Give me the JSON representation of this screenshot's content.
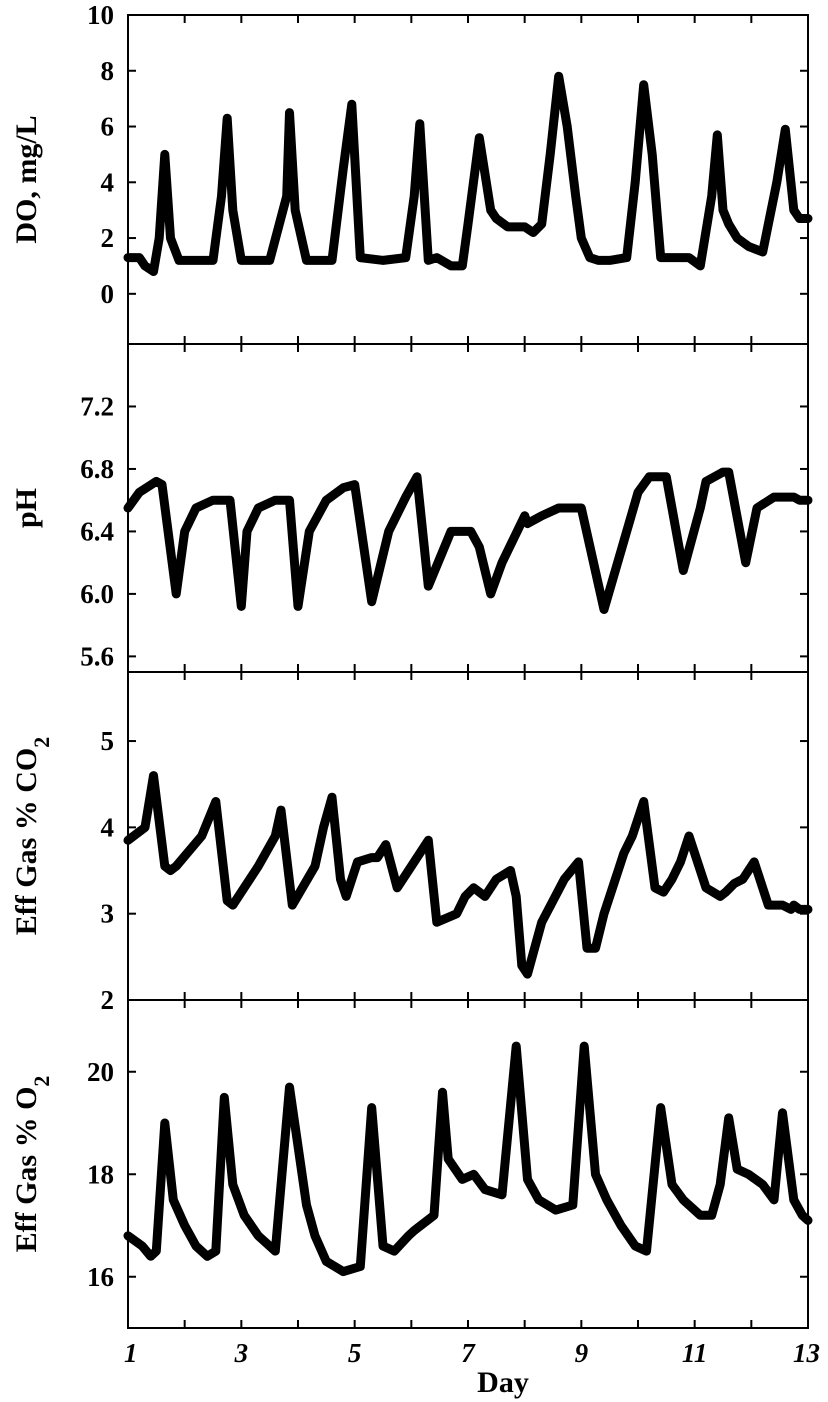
{
  "chart_data": [
    {
      "type": "line",
      "ylabel": "DO, mg/L",
      "ylim": [
        -1.8,
        10
      ],
      "yticks": [
        0,
        2,
        4,
        6,
        8,
        10
      ],
      "ytick_labels": [
        "0",
        "2",
        "4",
        "6",
        "8",
        "10"
      ],
      "xlim": [
        1,
        13
      ],
      "series": [
        {
          "x": [
            1.0,
            1.2,
            1.3,
            1.45,
            1.55,
            1.65,
            1.75,
            1.9,
            2.2,
            2.5,
            2.65,
            2.75,
            2.85,
            3.0,
            3.2,
            3.5,
            3.8,
            3.85,
            3.95,
            4.15,
            4.6,
            4.8,
            4.95,
            5.1,
            5.5,
            5.9,
            6.05,
            6.15,
            6.3,
            6.45,
            6.7,
            6.9,
            7.0,
            7.2,
            7.4,
            7.5,
            7.7,
            8.0,
            8.15,
            8.3,
            8.45,
            8.6,
            8.75,
            8.9,
            9.0,
            9.15,
            9.3,
            9.5,
            9.8,
            9.95,
            10.1,
            10.25,
            10.4,
            10.5,
            10.7,
            10.9,
            11.1,
            11.3,
            11.4,
            11.5,
            11.6,
            11.75,
            11.95,
            12.2,
            12.45,
            12.6,
            12.75,
            12.85,
            13.0
          ],
          "y": [
            1.3,
            1.3,
            1.0,
            0.8,
            2.0,
            5.0,
            2.0,
            1.2,
            1.2,
            1.2,
            3.5,
            6.3,
            3.0,
            1.2,
            1.2,
            1.2,
            3.5,
            6.5,
            3.0,
            1.2,
            1.2,
            4.5,
            6.8,
            1.3,
            1.2,
            1.3,
            3.5,
            6.1,
            1.2,
            1.3,
            1.0,
            1.0,
            2.5,
            5.6,
            3.0,
            2.7,
            2.4,
            2.4,
            2.2,
            2.5,
            5.0,
            7.8,
            6.0,
            3.5,
            2.0,
            1.3,
            1.2,
            1.2,
            1.3,
            4.0,
            7.5,
            5.0,
            1.3,
            1.3,
            1.3,
            1.3,
            1.0,
            3.5,
            5.7,
            3.0,
            2.5,
            2.0,
            1.7,
            1.5,
            4.0,
            5.9,
            3.0,
            2.7,
            2.7
          ]
        }
      ]
    },
    {
      "type": "line",
      "ylabel": "pH",
      "ylim": [
        5.5,
        7.6
      ],
      "yticks": [
        5.6,
        6.0,
        6.4,
        6.8,
        7.2
      ],
      "ytick_labels": [
        "5.6",
        "6.0",
        "6.4",
        "6.8",
        "7.2"
      ],
      "xlim": [
        1,
        13
      ],
      "series": [
        {
          "x": [
            1.0,
            1.2,
            1.5,
            1.6,
            1.85,
            2.0,
            2.2,
            2.5,
            2.8,
            3.0,
            3.1,
            3.3,
            3.6,
            3.85,
            4.0,
            4.2,
            4.5,
            4.8,
            5.0,
            5.3,
            5.6,
            5.9,
            6.1,
            6.3,
            6.7,
            6.8,
            7.05,
            7.2,
            7.4,
            7.6,
            8.0,
            8.05,
            8.3,
            8.6,
            8.8,
            9.0,
            9.4,
            9.8,
            10.0,
            10.2,
            10.5,
            10.8,
            11.1,
            11.2,
            11.5,
            11.6,
            11.9,
            12.1,
            12.4,
            12.6,
            12.75,
            12.85,
            13.0
          ],
          "y": [
            6.55,
            6.65,
            6.72,
            6.7,
            6.0,
            6.4,
            6.55,
            6.6,
            6.6,
            5.92,
            6.4,
            6.55,
            6.6,
            6.6,
            5.92,
            6.4,
            6.6,
            6.68,
            6.7,
            5.95,
            6.4,
            6.62,
            6.75,
            6.05,
            6.4,
            6.4,
            6.4,
            6.3,
            6.0,
            6.2,
            6.5,
            6.45,
            6.5,
            6.55,
            6.55,
            6.55,
            5.9,
            6.4,
            6.65,
            6.75,
            6.75,
            6.15,
            6.55,
            6.72,
            6.78,
            6.78,
            6.2,
            6.55,
            6.62,
            6.62,
            6.62,
            6.6,
            6.6
          ]
        }
      ]
    },
    {
      "type": "line",
      "ylabel": "Eff Gas % CO2",
      "ylim": [
        2,
        5.8
      ],
      "yticks": [
        2,
        3,
        4,
        5
      ],
      "ytick_labels": [
        "2",
        "3",
        "4",
        "5"
      ],
      "xlim": [
        1,
        13
      ],
      "series": [
        {
          "x": [
            1.0,
            1.3,
            1.45,
            1.65,
            1.75,
            1.85,
            2.3,
            2.55,
            2.75,
            2.85,
            3.3,
            3.6,
            3.7,
            3.9,
            4.3,
            4.45,
            4.6,
            4.75,
            4.85,
            5.05,
            5.3,
            5.4,
            5.55,
            5.75,
            6.05,
            6.3,
            6.45,
            6.8,
            6.95,
            7.1,
            7.3,
            7.5,
            7.75,
            7.85,
            7.95,
            8.05,
            8.3,
            8.7,
            8.95,
            9.1,
            9.25,
            9.4,
            9.55,
            9.65,
            9.75,
            9.9,
            10.1,
            10.3,
            10.45,
            10.6,
            10.75,
            10.9,
            11.2,
            11.45,
            11.55,
            11.7,
            11.85,
            12.05,
            12.3,
            12.45,
            12.55,
            12.7,
            12.75,
            12.85,
            13.0
          ],
          "y": [
            3.85,
            4.0,
            4.6,
            3.55,
            3.5,
            3.55,
            3.9,
            4.3,
            3.15,
            3.1,
            3.55,
            3.9,
            4.2,
            3.1,
            3.55,
            4.0,
            4.35,
            3.4,
            3.2,
            3.6,
            3.65,
            3.65,
            3.8,
            3.3,
            3.6,
            3.85,
            2.9,
            3.0,
            3.2,
            3.3,
            3.2,
            3.4,
            3.5,
            3.2,
            2.4,
            2.3,
            2.9,
            3.4,
            3.6,
            2.6,
            2.6,
            3.0,
            3.3,
            3.5,
            3.7,
            3.9,
            4.3,
            3.3,
            3.25,
            3.4,
            3.6,
            3.9,
            3.3,
            3.2,
            3.25,
            3.35,
            3.4,
            3.6,
            3.1,
            3.1,
            3.1,
            3.05,
            3.1,
            3.05,
            3.05
          ]
        }
      ]
    },
    {
      "type": "line",
      "ylabel": "Eff Gas % O2",
      "ylim": [
        15,
        21.4
      ],
      "yticks": [
        16,
        18,
        20
      ],
      "ytick_labels": [
        "16",
        "18",
        "20"
      ],
      "xlim": [
        1,
        13
      ],
      "series": [
        {
          "x": [
            1.0,
            1.25,
            1.4,
            1.5,
            1.65,
            1.8,
            2.0,
            2.2,
            2.4,
            2.55,
            2.7,
            2.85,
            3.05,
            3.3,
            3.6,
            3.85,
            4.15,
            4.3,
            4.5,
            4.8,
            5.1,
            5.3,
            5.5,
            5.7,
            5.95,
            6.05,
            6.4,
            6.55,
            6.65,
            6.9,
            7.1,
            7.3,
            7.6,
            7.85,
            8.05,
            8.25,
            8.55,
            8.85,
            9.05,
            9.25,
            9.45,
            9.7,
            9.95,
            10.15,
            10.4,
            10.6,
            10.8,
            11.1,
            11.3,
            11.45,
            11.6,
            11.75,
            11.95,
            12.2,
            12.4,
            12.55,
            12.75,
            12.9,
            13.0
          ],
          "y": [
            16.8,
            16.6,
            16.4,
            16.5,
            19.0,
            17.5,
            17.0,
            16.6,
            16.4,
            16.5,
            19.5,
            17.8,
            17.2,
            16.8,
            16.5,
            19.7,
            17.4,
            16.8,
            16.3,
            16.1,
            16.2,
            19.3,
            16.6,
            16.5,
            16.8,
            16.9,
            17.2,
            19.6,
            18.3,
            17.9,
            18.0,
            17.7,
            17.6,
            20.5,
            17.9,
            17.5,
            17.3,
            17.4,
            20.5,
            18.0,
            17.5,
            17.0,
            16.6,
            16.5,
            19.3,
            17.8,
            17.5,
            17.2,
            17.2,
            17.8,
            19.1,
            18.1,
            18.0,
            17.8,
            17.5,
            19.2,
            17.5,
            17.2,
            17.1
          ]
        }
      ]
    }
  ],
  "x_axis": {
    "label": "Day",
    "ticks": [
      1,
      3,
      5,
      7,
      9,
      11,
      13
    ],
    "tick_labels": [
      "1",
      "3",
      "5",
      "7",
      "9",
      "11",
      "13"
    ]
  }
}
